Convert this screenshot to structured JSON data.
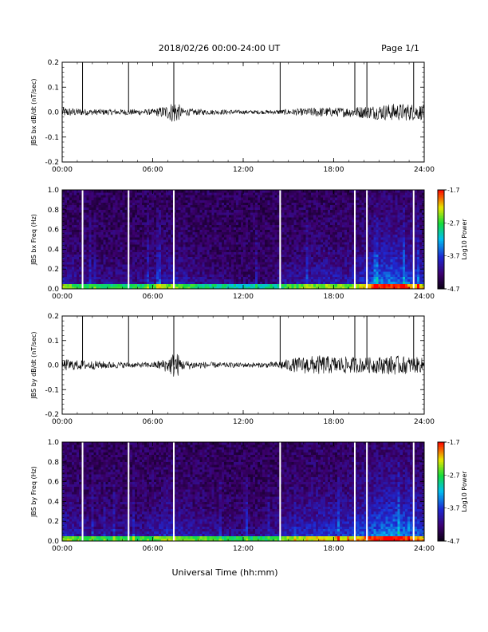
{
  "header": {
    "title": "2018/02/26  00:00-24:00 UT",
    "page": "Page 1/1"
  },
  "xaxis_label": "Universal Time (hh:mm)",
  "chart_data": [
    {
      "type": "line",
      "ylabel": "JBS bx dB/dt (nT/sec)",
      "xlim": [
        0,
        24
      ],
      "ylim": [
        -0.2,
        0.2
      ],
      "xticks": [
        "00:00",
        "06:00",
        "12:00",
        "18:00",
        "24:00"
      ],
      "yticks": [
        "-0.2",
        "-0.1",
        "0.0",
        "0.1",
        "0.2"
      ],
      "data_gap_markers_hours": [
        1.35,
        4.4,
        7.4,
        14.45,
        19.4,
        20.2,
        23.3
      ],
      "envelope": {
        "x": [
          0,
          1,
          2,
          3,
          4,
          5,
          6,
          7,
          7.5,
          8,
          9,
          10,
          11,
          12,
          13,
          14,
          15,
          16,
          17,
          18,
          19,
          20,
          21,
          22,
          23,
          24
        ],
        "amplitude": [
          0.02,
          0.015,
          0.012,
          0.012,
          0.012,
          0.012,
          0.012,
          0.03,
          0.05,
          0.015,
          0.012,
          0.01,
          0.01,
          0.008,
          0.008,
          0.008,
          0.012,
          0.015,
          0.02,
          0.018,
          0.02,
          0.025,
          0.03,
          0.035,
          0.035,
          0.03
        ]
      }
    },
    {
      "type": "heatmap",
      "ylabel": "JBS bx Freq (Hz)",
      "xlim": [
        0,
        24
      ],
      "ylim": [
        0,
        1.0
      ],
      "xticks": [
        "00:00",
        "06:00",
        "12:00",
        "18:00",
        "24:00"
      ],
      "yticks": [
        "0.0",
        "0.2",
        "0.4",
        "0.6",
        "0.8",
        "1.0"
      ],
      "colorbar": {
        "label": "Log10 Power",
        "ticks": [
          "-1.7",
          "-2.7",
          "-3.7",
          "-4.7"
        ],
        "range": [
          -4.7,
          -1.7
        ]
      },
      "data_gap_markers_hours": [
        1.35,
        4.4,
        7.4,
        14.45,
        19.4,
        20.2,
        23.3
      ],
      "activity": {
        "x": [
          0,
          1,
          2,
          3,
          4,
          5,
          6,
          7,
          8,
          9,
          10,
          11,
          12,
          13,
          14,
          15,
          16,
          17,
          18,
          19,
          20,
          21,
          22,
          23,
          24
        ],
        "level": [
          0.35,
          0.25,
          0.2,
          0.2,
          0.2,
          0.2,
          0.25,
          0.35,
          0.3,
          0.2,
          0.15,
          0.15,
          0.1,
          0.1,
          0.15,
          0.25,
          0.3,
          0.35,
          0.35,
          0.3,
          0.45,
          0.6,
          0.65,
          0.55,
          0.45
        ]
      }
    },
    {
      "type": "line",
      "ylabel": "JBS by dB/dt (nT/sec)",
      "xlim": [
        0,
        24
      ],
      "ylim": [
        -0.2,
        0.2
      ],
      "xticks": [
        "00:00",
        "06:00",
        "12:00",
        "18:00",
        "24:00"
      ],
      "yticks": [
        "-0.2",
        "-0.1",
        "0.0",
        "0.1",
        "0.2"
      ],
      "data_gap_markers_hours": [
        1.35,
        4.4,
        7.4,
        14.45,
        19.4,
        20.2,
        23.3
      ],
      "envelope": {
        "x": [
          0,
          1,
          2,
          3,
          4,
          5,
          6,
          7,
          7.5,
          8,
          9,
          10,
          11,
          12,
          13,
          14,
          15,
          16,
          17,
          18,
          19,
          20,
          21,
          22,
          23,
          24
        ],
        "amplitude": [
          0.025,
          0.02,
          0.018,
          0.015,
          0.012,
          0.01,
          0.012,
          0.03,
          0.06,
          0.02,
          0.015,
          0.012,
          0.01,
          0.01,
          0.01,
          0.012,
          0.025,
          0.035,
          0.04,
          0.035,
          0.035,
          0.03,
          0.035,
          0.04,
          0.035,
          0.03
        ]
      }
    },
    {
      "type": "heatmap",
      "ylabel": "JBS by Freq (Hz)",
      "xlim": [
        0,
        24
      ],
      "ylim": [
        0,
        1.0
      ],
      "xticks": [
        "00:00",
        "06:00",
        "12:00",
        "18:00",
        "24:00"
      ],
      "yticks": [
        "0.0",
        "0.2",
        "0.4",
        "0.6",
        "0.8",
        "1.0"
      ],
      "colorbar": {
        "label": "Log10 Power",
        "ticks": [
          "-1.7",
          "-2.7",
          "-3.7",
          "-4.7"
        ],
        "range": [
          -4.7,
          -1.7
        ]
      },
      "data_gap_markers_hours": [
        1.35,
        4.4,
        7.4,
        14.45,
        19.4,
        20.2,
        23.3
      ],
      "activity": {
        "x": [
          0,
          1,
          2,
          3,
          4,
          5,
          6,
          7,
          8,
          9,
          10,
          11,
          12,
          13,
          14,
          15,
          16,
          17,
          18,
          19,
          20,
          21,
          22,
          23,
          24
        ],
        "level": [
          0.4,
          0.3,
          0.25,
          0.25,
          0.25,
          0.25,
          0.3,
          0.4,
          0.35,
          0.3,
          0.25,
          0.2,
          0.2,
          0.2,
          0.25,
          0.35,
          0.4,
          0.45,
          0.45,
          0.45,
          0.55,
          0.65,
          0.7,
          0.6,
          0.5
        ]
      }
    }
  ]
}
